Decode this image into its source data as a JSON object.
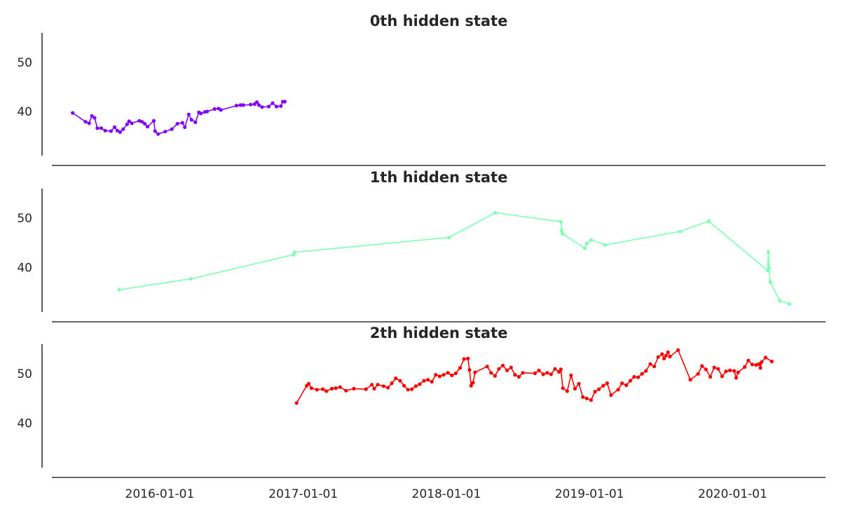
{
  "chart_data": [
    {
      "type": "line",
      "title": "0th hidden state",
      "color": "#8000ff",
      "x_type": "date",
      "ylim": [
        31,
        56
      ],
      "yticks": [
        40,
        50
      ],
      "ytick_labels": [
        "40",
        "50"
      ],
      "grid": false,
      "points": [
        [
          "2015-05-24",
          39.7
        ],
        [
          "2015-06-26",
          37.9
        ],
        [
          "2015-07-05",
          37.6
        ],
        [
          "2015-07-12",
          39.1
        ],
        [
          "2015-07-19",
          38.7
        ],
        [
          "2015-07-26",
          36.6
        ],
        [
          "2015-08-05",
          36.6
        ],
        [
          "2015-08-15",
          36.1
        ],
        [
          "2015-08-30",
          36.0
        ],
        [
          "2015-09-08",
          36.8
        ],
        [
          "2015-09-15",
          36.1
        ],
        [
          "2015-09-22",
          35.8
        ],
        [
          "2015-09-30",
          36.4
        ],
        [
          "2015-10-10",
          37.4
        ],
        [
          "2015-10-15",
          38.0
        ],
        [
          "2015-10-22",
          37.6
        ],
        [
          "2015-11-10",
          38.1
        ],
        [
          "2015-11-17",
          37.9
        ],
        [
          "2015-11-24",
          37.5
        ],
        [
          "2015-12-01",
          36.9
        ],
        [
          "2015-12-17",
          38.1
        ],
        [
          "2015-12-20",
          36.0
        ],
        [
          "2015-12-28",
          35.4
        ],
        [
          "2016-01-15",
          35.9
        ],
        [
          "2016-02-01",
          36.4
        ],
        [
          "2016-02-15",
          37.5
        ],
        [
          "2016-02-28",
          37.7
        ],
        [
          "2016-03-05",
          36.8
        ],
        [
          "2016-03-15",
          39.4
        ],
        [
          "2016-03-22",
          38.3
        ],
        [
          "2016-04-01",
          37.8
        ],
        [
          "2016-04-10",
          39.8
        ],
        [
          "2016-04-15",
          39.6
        ],
        [
          "2016-04-25",
          39.9
        ],
        [
          "2016-05-01",
          40.0
        ],
        [
          "2016-05-20",
          40.5
        ],
        [
          "2016-05-30",
          40.6
        ],
        [
          "2016-06-05",
          40.3
        ],
        [
          "2016-07-15",
          41.2
        ],
        [
          "2016-07-25",
          41.3
        ],
        [
          "2016-08-01",
          41.3
        ],
        [
          "2016-08-20",
          41.4
        ],
        [
          "2016-08-30",
          41.5
        ],
        [
          "2016-09-05",
          41.9
        ],
        [
          "2016-09-10",
          41.3
        ],
        [
          "2016-09-18",
          40.9
        ],
        [
          "2016-10-05",
          41.0
        ],
        [
          "2016-10-15",
          41.7
        ],
        [
          "2016-10-25",
          41.0
        ],
        [
          "2016-11-05",
          41.1
        ],
        [
          "2016-11-10",
          42.0
        ],
        [
          "2016-11-15",
          42.0
        ]
      ]
    },
    {
      "type": "line",
      "title": "1th hidden state",
      "color": "#80ffb4",
      "x_type": "date",
      "ylim": [
        31,
        56
      ],
      "yticks": [
        40,
        50
      ],
      "ytick_labels": [
        "40",
        "50"
      ],
      "grid": false,
      "points": [
        [
          "2015-09-20",
          35.5
        ],
        [
          "2016-03-20",
          37.7
        ],
        [
          "2016-12-07",
          42.6
        ],
        [
          "2016-12-10",
          43.1
        ],
        [
          "2018-01-08",
          46.1
        ],
        [
          "2018-05-06",
          51.1
        ],
        [
          "2018-10-20",
          49.3
        ],
        [
          "2018-10-22",
          47.5
        ],
        [
          "2018-10-24",
          46.9
        ],
        [
          "2018-12-20",
          43.9
        ],
        [
          "2018-12-25",
          44.9
        ],
        [
          "2019-01-05",
          45.6
        ],
        [
          "2019-02-10",
          44.6
        ],
        [
          "2019-08-20",
          47.3
        ],
        [
          "2019-11-01",
          49.4
        ],
        [
          "2020-03-30",
          39.4
        ],
        [
          "2020-04-01",
          43.2
        ],
        [
          "2020-04-03",
          39.9
        ],
        [
          "2020-04-06",
          37.1
        ],
        [
          "2020-04-30",
          33.3
        ],
        [
          "2020-05-25",
          32.6
        ]
      ]
    },
    {
      "type": "line",
      "title": "2th hidden state",
      "color": "#ff0000",
      "x_type": "date",
      "ylim": [
        31,
        56
      ],
      "yticks": [
        40,
        50
      ],
      "ytick_labels": [
        "40",
        "50"
      ],
      "grid": false,
      "points": [
        [
          "2016-12-15",
          44.1
        ],
        [
          "2017-01-10",
          47.6
        ],
        [
          "2017-01-15",
          48.0
        ],
        [
          "2017-01-22",
          47.1
        ],
        [
          "2017-02-05",
          46.8
        ],
        [
          "2017-02-20",
          46.9
        ],
        [
          "2017-03-01",
          46.5
        ],
        [
          "2017-03-15",
          47.0
        ],
        [
          "2017-03-25",
          47.1
        ],
        [
          "2017-04-05",
          47.3
        ],
        [
          "2017-04-20",
          46.6
        ],
        [
          "2017-05-10",
          47.0
        ],
        [
          "2017-06-10",
          46.9
        ],
        [
          "2017-06-25",
          47.8
        ],
        [
          "2017-07-01",
          47.0
        ],
        [
          "2017-07-10",
          47.8
        ],
        [
          "2017-07-25",
          47.5
        ],
        [
          "2017-08-05",
          47.2
        ],
        [
          "2017-08-15",
          48.1
        ],
        [
          "2017-08-25",
          49.1
        ],
        [
          "2017-09-05",
          48.6
        ],
        [
          "2017-09-15",
          47.6
        ],
        [
          "2017-09-25",
          46.8
        ],
        [
          "2017-10-05",
          46.9
        ],
        [
          "2017-10-15",
          47.5
        ],
        [
          "2017-10-25",
          47.9
        ],
        [
          "2017-11-05",
          48.6
        ],
        [
          "2017-11-15",
          48.8
        ],
        [
          "2017-11-25",
          48.4
        ],
        [
          "2017-12-05",
          49.8
        ],
        [
          "2017-12-15",
          49.5
        ],
        [
          "2017-12-25",
          49.8
        ],
        [
          "2018-01-05",
          50.2
        ],
        [
          "2018-01-15",
          49.7
        ],
        [
          "2018-01-25",
          50.1
        ],
        [
          "2018-02-05",
          51.2
        ],
        [
          "2018-02-15",
          53.0
        ],
        [
          "2018-02-25",
          53.1
        ],
        [
          "2018-03-01",
          50.8
        ],
        [
          "2018-03-05",
          47.6
        ],
        [
          "2018-03-10",
          48.2
        ],
        [
          "2018-03-15",
          50.3
        ],
        [
          "2018-04-15",
          51.5
        ],
        [
          "2018-04-25",
          50.2
        ],
        [
          "2018-05-05",
          49.6
        ],
        [
          "2018-05-15",
          51.0
        ],
        [
          "2018-05-25",
          51.7
        ],
        [
          "2018-06-05",
          50.7
        ],
        [
          "2018-06-15",
          51.3
        ],
        [
          "2018-06-25",
          49.8
        ],
        [
          "2018-07-05",
          49.4
        ],
        [
          "2018-07-15",
          50.2
        ],
        [
          "2018-08-15",
          50.1
        ],
        [
          "2018-08-25",
          50.7
        ],
        [
          "2018-09-05",
          49.9
        ],
        [
          "2018-09-15",
          50.2
        ],
        [
          "2018-09-25",
          49.9
        ],
        [
          "2018-10-05",
          51.0
        ],
        [
          "2018-10-15",
          50.4
        ],
        [
          "2018-10-20",
          50.9
        ],
        [
          "2018-10-25",
          47.1
        ],
        [
          "2018-11-05",
          46.5
        ],
        [
          "2018-11-15",
          49.7
        ],
        [
          "2018-11-25",
          47.0
        ],
        [
          "2018-12-05",
          48.0
        ],
        [
          "2018-12-15",
          45.3
        ],
        [
          "2018-12-25",
          45.0
        ],
        [
          "2019-01-05",
          44.7
        ],
        [
          "2019-01-15",
          46.4
        ],
        [
          "2019-01-25",
          46.9
        ],
        [
          "2019-02-05",
          47.6
        ],
        [
          "2019-02-15",
          48.1
        ],
        [
          "2019-02-25",
          45.7
        ],
        [
          "2019-03-15",
          46.8
        ],
        [
          "2019-03-25",
          48.1
        ],
        [
          "2019-04-05",
          47.7
        ],
        [
          "2019-04-15",
          48.6
        ],
        [
          "2019-04-25",
          49.4
        ],
        [
          "2019-05-05",
          49.3
        ],
        [
          "2019-05-15",
          50.0
        ],
        [
          "2019-05-25",
          50.6
        ],
        [
          "2019-06-05",
          52.0
        ],
        [
          "2019-06-15",
          51.5
        ],
        [
          "2019-06-25",
          53.4
        ],
        [
          "2019-07-05",
          54.0
        ],
        [
          "2019-07-10",
          53.1
        ],
        [
          "2019-07-15",
          53.7
        ],
        [
          "2019-07-20",
          54.4
        ],
        [
          "2019-07-25",
          53.5
        ],
        [
          "2019-08-15",
          54.8
        ],
        [
          "2019-09-15",
          48.8
        ],
        [
          "2019-10-05",
          50.0
        ],
        [
          "2019-10-15",
          51.6
        ],
        [
          "2019-10-25",
          50.9
        ],
        [
          "2019-11-05",
          49.4
        ],
        [
          "2019-11-15",
          51.3
        ],
        [
          "2019-11-25",
          51.0
        ],
        [
          "2019-12-05",
          49.5
        ],
        [
          "2019-12-15",
          50.5
        ],
        [
          "2019-12-25",
          50.7
        ],
        [
          "2020-01-05",
          50.6
        ],
        [
          "2020-01-10",
          49.2
        ],
        [
          "2020-01-15",
          50.3
        ],
        [
          "2020-02-01",
          51.4
        ],
        [
          "2020-02-10",
          52.7
        ],
        [
          "2020-02-20",
          51.9
        ],
        [
          "2020-03-01",
          51.8
        ],
        [
          "2020-03-08",
          52.0
        ],
        [
          "2020-03-12",
          51.2
        ],
        [
          "2020-03-15",
          52.4
        ],
        [
          "2020-03-25",
          53.3
        ],
        [
          "2020-04-10",
          52.5
        ]
      ]
    }
  ],
  "x_axis": {
    "range": [
      "2015-04-01",
      "2020-08-25"
    ],
    "ticks": [
      "2016-01-01",
      "2017-01-01",
      "2018-01-01",
      "2019-01-01",
      "2020-01-01"
    ],
    "tick_labels": [
      "2016-01-01",
      "2017-01-01",
      "2018-01-01",
      "2019-01-01",
      "2020-01-01"
    ]
  },
  "colors": {
    "axis": "#333333",
    "text": "#262626",
    "background": "#ffffff"
  }
}
